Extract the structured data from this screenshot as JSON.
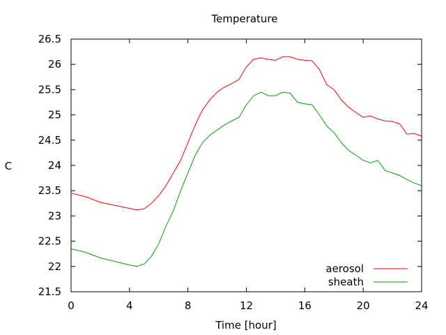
{
  "chart_data": {
    "type": "line",
    "title": "Temperature",
    "xlabel": "Time [hour]",
    "ylabel": "C",
    "xlim": [
      0,
      24
    ],
    "ylim": [
      21.5,
      26.5
    ],
    "x_ticks": [
      "0",
      "4",
      "8",
      "12",
      "16",
      "20",
      "24"
    ],
    "y_ticks": [
      "21.5",
      "22",
      "22.5",
      "23",
      "23.5",
      "24",
      "24.5",
      "25",
      "25.5",
      "26",
      "26.5"
    ],
    "grid": false,
    "legend_position": "bottom-right",
    "series": [
      {
        "name": "aerosol",
        "color": "#ff0000",
        "x": [
          0,
          1,
          2,
          3,
          4,
          4.5,
          5,
          5.5,
          6,
          6.5,
          7,
          7.5,
          8,
          8.5,
          9,
          9.5,
          10,
          10.5,
          11,
          11.5,
          12,
          12.5,
          13,
          13.5,
          14,
          14.5,
          15,
          15.5,
          16,
          16.5,
          17,
          17.5,
          18,
          18.5,
          19,
          19.5,
          20,
          20.5,
          21,
          21.5,
          22,
          22.5,
          23,
          23.5,
          24
        ],
        "y": [
          23.45,
          23.38,
          23.27,
          23.21,
          23.15,
          23.12,
          23.14,
          23.25,
          23.4,
          23.6,
          23.85,
          24.1,
          24.45,
          24.8,
          25.1,
          25.3,
          25.45,
          25.55,
          25.62,
          25.7,
          25.95,
          26.1,
          26.13,
          26.1,
          26.08,
          26.15,
          26.15,
          26.1,
          26.08,
          26.07,
          25.9,
          25.6,
          25.5,
          25.3,
          25.15,
          25.05,
          24.95,
          24.98,
          24.92,
          24.88,
          24.87,
          24.82,
          24.62,
          24.63,
          24.58
        ]
      },
      {
        "name": "sheath",
        "color": "#00a000",
        "x": [
          0,
          1,
          2,
          3,
          4,
          4.5,
          5,
          5.5,
          6,
          6.5,
          7,
          7.5,
          8,
          8.5,
          9,
          9.5,
          10,
          10.5,
          11,
          11.5,
          12,
          12.5,
          13,
          13.5,
          14,
          14.5,
          15,
          15.5,
          16,
          16.5,
          17,
          17.5,
          18,
          18.5,
          19,
          19.5,
          20,
          20.5,
          21,
          21.5,
          22,
          22.5,
          23,
          23.5,
          24
        ],
        "y": [
          22.35,
          22.28,
          22.17,
          22.1,
          22.03,
          22.0,
          22.05,
          22.2,
          22.45,
          22.8,
          23.1,
          23.5,
          23.85,
          24.2,
          24.45,
          24.6,
          24.7,
          24.8,
          24.88,
          24.95,
          25.2,
          25.38,
          25.45,
          25.38,
          25.38,
          25.45,
          25.43,
          25.25,
          25.22,
          25.2,
          25.0,
          24.78,
          24.65,
          24.45,
          24.3,
          24.2,
          24.1,
          24.05,
          24.1,
          23.9,
          23.85,
          23.8,
          23.72,
          23.65,
          23.6
        ]
      }
    ]
  }
}
